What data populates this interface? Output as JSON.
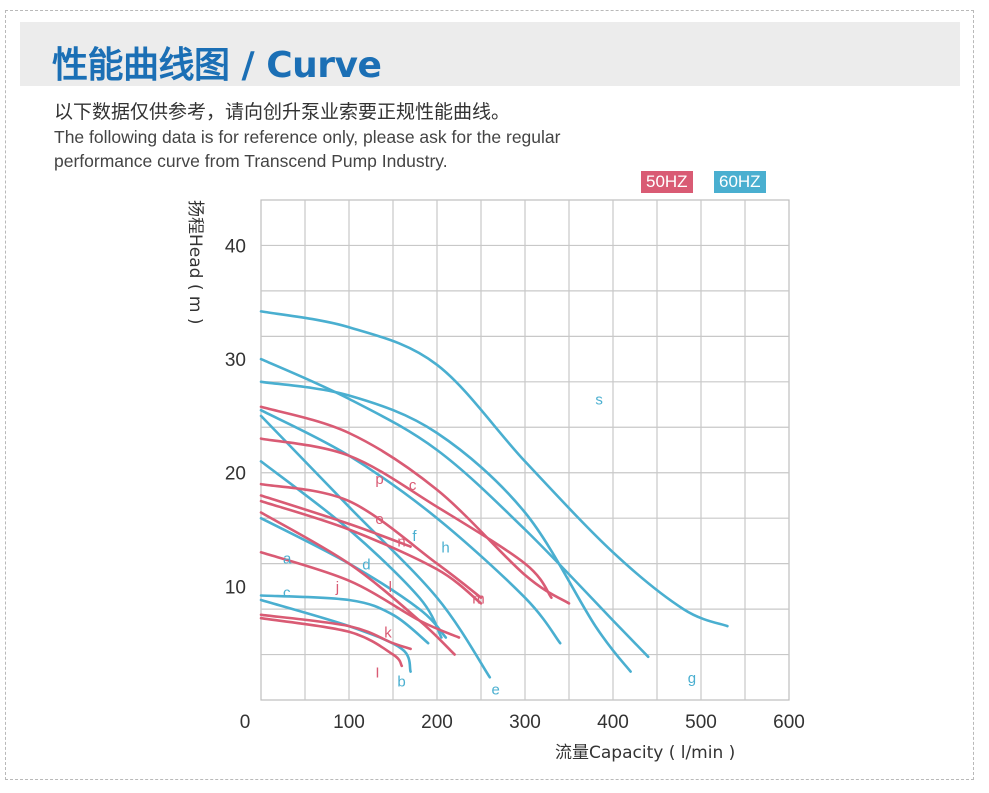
{
  "header": {
    "title": "性能曲线图 / Curve",
    "desc_cn": "以下数据仅供参考，请向创升泵业索要正规性能曲线。",
    "desc_en_1": "The following data is for reference only, please ask for the regular",
    "desc_en_2": "performance curve from Transcend Pump Industry."
  },
  "legend": {
    "hz50": {
      "label": "50HZ",
      "color": "#d95b74"
    },
    "hz60": {
      "label": "60HZ",
      "color": "#4aafd0"
    }
  },
  "chart_data": {
    "type": "line",
    "xlabel": "流量Capacity ( l/min )",
    "ylabel": "扬程Head ( m )",
    "xlim": [
      0,
      600
    ],
    "ylim": [
      0,
      44
    ],
    "xticks": [
      0,
      100,
      200,
      300,
      400,
      500,
      600
    ],
    "yticks": [
      10,
      20,
      30,
      40
    ],
    "grid": true,
    "series": [
      {
        "name": "s",
        "group": "60HZ",
        "points": [
          [
            0,
            34.2
          ],
          [
            100,
            32.8
          ],
          [
            200,
            29.5
          ],
          [
            300,
            21
          ],
          [
            400,
            13
          ],
          [
            480,
            8
          ],
          [
            530,
            6.5
          ]
        ],
        "label_at": [
          380,
          26
        ]
      },
      {
        "name": "g",
        "group": "60HZ",
        "points": [
          [
            0,
            30
          ],
          [
            100,
            26.5
          ],
          [
            200,
            22
          ],
          [
            300,
            15
          ],
          [
            400,
            7
          ],
          [
            440,
            3.8
          ]
        ],
        "label_at": [
          485,
          1.5
        ]
      },
      {
        "name": "h",
        "group": "60HZ",
        "points": [
          [
            0,
            28
          ],
          [
            100,
            26.8
          ],
          [
            200,
            23.5
          ],
          [
            300,
            16.5
          ],
          [
            380,
            6.5
          ],
          [
            420,
            2.5
          ]
        ],
        "label_at": [
          205,
          13
        ]
      },
      {
        "name": "f",
        "group": "60HZ",
        "points": [
          [
            0,
            25.5
          ],
          [
            100,
            21.5
          ],
          [
            200,
            16
          ],
          [
            300,
            9
          ],
          [
            340,
            5
          ]
        ],
        "label_at": [
          172,
          14
        ]
      },
      {
        "name": "e",
        "group": "60HZ",
        "points": [
          [
            0,
            25
          ],
          [
            100,
            17
          ],
          [
            200,
            9
          ],
          [
            260,
            2
          ]
        ],
        "label_at": [
          262,
          0.5
        ]
      },
      {
        "name": "d",
        "group": "60HZ",
        "points": [
          [
            0,
            21
          ],
          [
            100,
            15
          ],
          [
            180,
            9
          ],
          [
            205,
            5.5
          ]
        ],
        "label_at": [
          115,
          11.5
        ]
      },
      {
        "name": "a",
        "group": "60HZ",
        "points": [
          [
            0,
            16
          ],
          [
            100,
            12
          ],
          [
            180,
            8
          ],
          [
            210,
            5.5
          ]
        ],
        "label_at": [
          25,
          12
        ]
      },
      {
        "name": "c",
        "group": "60HZ",
        "points": [
          [
            0,
            9.2
          ],
          [
            100,
            8.8
          ],
          [
            150,
            7.5
          ],
          [
            190,
            5
          ]
        ],
        "label_at": [
          25,
          9
        ]
      },
      {
        "name": "b",
        "group": "60HZ",
        "points": [
          [
            0,
            8.8
          ],
          [
            100,
            6.5
          ],
          [
            160,
            4.5
          ],
          [
            170,
            2.5
          ]
        ],
        "label_at": [
          155,
          1.2
        ]
      },
      {
        "name": "c",
        "group": "50HZ",
        "points": [
          [
            0,
            25.8
          ],
          [
            100,
            23.5
          ],
          [
            200,
            18.5
          ],
          [
            300,
            11
          ],
          [
            350,
            8.5
          ]
        ],
        "label_at": [
          168,
          18.5
        ]
      },
      {
        "name": "p",
        "group": "50HZ",
        "points": [
          [
            0,
            23
          ],
          [
            100,
            21.5
          ],
          [
            200,
            17
          ],
          [
            300,
            12
          ],
          [
            330,
            9
          ]
        ],
        "label_at": [
          130,
          19
        ]
      },
      {
        "name": "o",
        "group": "50HZ",
        "points": [
          [
            0,
            19
          ],
          [
            100,
            17.5
          ],
          [
            200,
            12
          ],
          [
            250,
            9
          ]
        ],
        "label_at": [
          130,
          15.5
        ]
      },
      {
        "name": "n",
        "group": "50HZ",
        "points": [
          [
            0,
            18
          ],
          [
            100,
            15.5
          ],
          [
            170,
            13.5
          ]
        ],
        "label_at": [
          155,
          13.5
        ]
      },
      {
        "name": "m",
        "group": "50HZ",
        "points": [
          [
            0,
            17.5
          ],
          [
            100,
            15
          ],
          [
            200,
            11.5
          ],
          [
            250,
            8.5
          ]
        ],
        "label_at": [
          240,
          8.5
        ]
      },
      {
        "name": "l",
        "group": "50HZ",
        "points": [
          [
            0,
            13
          ],
          [
            100,
            10.5
          ],
          [
            180,
            7
          ],
          [
            225,
            5.5
          ]
        ],
        "label_at": [
          145,
          9.5
        ]
      },
      {
        "name": "j",
        "group": "50HZ",
        "points": [
          [
            0,
            16.5
          ],
          [
            100,
            12
          ],
          [
            180,
            7
          ],
          [
            220,
            4
          ]
        ],
        "label_at": [
          85,
          9.5
        ]
      },
      {
        "name": "k",
        "group": "50HZ",
        "points": [
          [
            0,
            7.5
          ],
          [
            100,
            6.5
          ],
          [
            150,
            5
          ],
          [
            170,
            4.5
          ]
        ],
        "label_at": [
          140,
          5.5
        ]
      },
      {
        "name": "I",
        "group": "50HZ",
        "points": [
          [
            0,
            7.2
          ],
          [
            100,
            6
          ],
          [
            150,
            4
          ],
          [
            160,
            3
          ]
        ],
        "label_at": [
          130,
          2
        ]
      }
    ]
  }
}
